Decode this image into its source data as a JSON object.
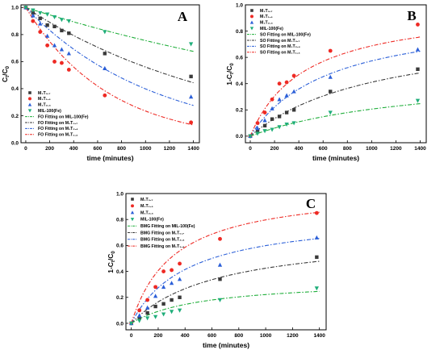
{
  "chart_data": [
    {
      "type": "scatter",
      "panel_label": "A",
      "xlabel": "time (minutes)",
      "ylabel_main": "C",
      "ylabel_sub1": "t",
      "ylabel_mid": "/C",
      "ylabel_sub2": "0",
      "xlim": [
        -40,
        1450
      ],
      "ylim": [
        0,
        1.02
      ],
      "xticks": [
        0,
        200,
        400,
        600,
        800,
        1000,
        1200,
        1400
      ],
      "yticks": [
        0.0,
        0.2,
        0.4,
        0.6,
        0.8,
        1.0
      ],
      "xtick_labels": [
        "0",
        "200",
        "400",
        "600",
        "800",
        "1000",
        "1200",
        "1400"
      ],
      "ytick_labels": [
        "0.0",
        "0.2",
        "0.4",
        "0.6",
        "0.8",
        "1.0"
      ],
      "legend_position": "bottom-left",
      "legend": [
        "M₁T₀.₇",
        "M₁T₁.₄",
        "M₁T₂.₄",
        "MIL-100(Fe)",
        "FO Fitting on MIL-100(Fe)",
        "FO Fitting on M₁T₀.₇",
        "FO Fitting on M₁T₂.₄",
        "FO Fitting on M₁T₁.₄"
      ],
      "x": [
        0,
        60,
        120,
        180,
        240,
        300,
        360,
        660,
        1380
      ],
      "series": [
        {
          "name": "M₁T₀.₇",
          "marker": "square",
          "color": "#3a3a3a",
          "values": [
            1.0,
            0.96,
            0.92,
            0.87,
            0.86,
            0.83,
            0.81,
            0.66,
            0.49
          ]
        },
        {
          "name": "M₁T₁.₄",
          "marker": "circle",
          "color": "#ee2a24",
          "values": [
            1.0,
            0.9,
            0.82,
            0.72,
            0.6,
            0.59,
            0.54,
            0.35,
            0.15
          ]
        },
        {
          "name": "M₁T₂.₄",
          "marker": "triangle-up",
          "color": "#2b5fd8",
          "values": [
            1.0,
            0.94,
            0.88,
            0.79,
            0.72,
            0.69,
            0.66,
            0.55,
            0.34
          ]
        },
        {
          "name": "MIL-100(Fe)",
          "marker": "triangle-down",
          "color": "#1fae7a",
          "values": [
            1.0,
            0.98,
            0.96,
            0.95,
            0.93,
            0.91,
            0.9,
            0.82,
            0.73
          ]
        }
      ],
      "fits": [
        {
          "name": "FO Fitting on MIL-100(Fe)",
          "color": "#1fae3a",
          "model": "FO",
          "k": 0.00028
        },
        {
          "name": "FO Fitting on M₁T₀.₇",
          "color": "#3a3a3a",
          "model": "FO",
          "k": 0.00058
        },
        {
          "name": "FO Fitting on M₁T₂.₄",
          "color": "#2b5fd8",
          "model": "FO",
          "k": 0.00092
        },
        {
          "name": "FO Fitting on M₁T₁.₄",
          "color": "#ee2a24",
          "model": "FO",
          "k": 0.00145
        }
      ]
    },
    {
      "type": "scatter",
      "panel_label": "B",
      "xlabel": "time (minutes)",
      "ylabel_main": "1-C",
      "ylabel_sub1": "t",
      "ylabel_mid": "/C",
      "ylabel_sub2": "0",
      "xlim": [
        -40,
        1450
      ],
      "ylim": [
        -0.05,
        1.0
      ],
      "xticks": [
        0,
        200,
        400,
        600,
        800,
        1000,
        1200,
        1400
      ],
      "yticks": [
        0.0,
        0.2,
        0.4,
        0.6,
        0.8,
        1.0
      ],
      "xtick_labels": [
        "0",
        "200",
        "400",
        "600",
        "800",
        "1000",
        "1200",
        "1400"
      ],
      "ytick_labels": [
        "0.0",
        "0.2",
        "0.4",
        "0.6",
        "0.8",
        "1.0"
      ],
      "legend_position": "top-left",
      "legend": [
        "M₁T₀.₇",
        "M₁T₁.₄",
        "M₁T₂.₄",
        "MIL-100(Fe)",
        "SO Fitting on MIL-100(Fe)",
        "SO Fitting on M₁T₀.₇",
        "SO Fitting on M₁T₂.₄",
        "SO Fitting on M₁T₁.₄"
      ],
      "x": [
        0,
        60,
        120,
        180,
        240,
        300,
        360,
        660,
        1380
      ],
      "series": [
        {
          "name": "M₁T₀.₇",
          "marker": "square",
          "color": "#3a3a3a",
          "values": [
            0.0,
            0.04,
            0.08,
            0.13,
            0.15,
            0.18,
            0.2,
            0.34,
            0.51
          ]
        },
        {
          "name": "M₁T₁.₄",
          "marker": "circle",
          "color": "#ee2a24",
          "values": [
            0.0,
            0.1,
            0.18,
            0.28,
            0.4,
            0.41,
            0.46,
            0.65,
            0.85
          ]
        },
        {
          "name": "M₁T₂.₄",
          "marker": "triangle-up",
          "color": "#2b5fd8",
          "values": [
            0.0,
            0.06,
            0.12,
            0.21,
            0.28,
            0.31,
            0.34,
            0.45,
            0.66
          ]
        },
        {
          "name": "MIL-100(Fe)",
          "marker": "triangle-down",
          "color": "#1fae7a",
          "values": [
            0.0,
            0.02,
            0.04,
            0.05,
            0.07,
            0.09,
            0.1,
            0.18,
            0.27
          ]
        }
      ],
      "fits": [
        {
          "name": "SO Fitting on MIL-100(Fe)",
          "color": "#1fae3a",
          "model": "SO",
          "qe": 0.5,
          "k": 0.0014
        },
        {
          "name": "SO Fitting on M₁T₀.₇",
          "color": "#3a3a3a",
          "model": "SO",
          "qe": 0.85,
          "k": 0.0011
        },
        {
          "name": "SO Fitting on M₁T₂.₄",
          "color": "#2b5fd8",
          "model": "SO",
          "qe": 0.95,
          "k": 0.0016
        },
        {
          "name": "SO Fitting on M₁T₁.₄",
          "color": "#ee2a24",
          "model": "SO",
          "qe": 1.0,
          "k": 0.0022
        }
      ]
    },
    {
      "type": "scatter",
      "panel_label": "C",
      "xlabel": "time (minutes)",
      "ylabel_main": "1-C",
      "ylabel_sub1": "t",
      "ylabel_mid": "/C",
      "ylabel_sub2": "0",
      "xlim": [
        -40,
        1450
      ],
      "ylim": [
        -0.05,
        1.0
      ],
      "xticks": [
        0,
        200,
        400,
        600,
        800,
        1000,
        1200,
        1400
      ],
      "yticks": [
        0.0,
        0.2,
        0.4,
        0.6,
        0.8,
        1.0
      ],
      "xtick_labels": [
        "0",
        "200",
        "400",
        "600",
        "800",
        "1000",
        "1200",
        "1400"
      ],
      "ytick_labels": [
        "0.0",
        "0.2",
        "0.4",
        "0.6",
        "0.8",
        "1.0"
      ],
      "legend_position": "top-left",
      "legend": [
        "M₁T₀.₇",
        "M₁T₁.₄",
        "M₁T₂.₄",
        "MIL-100(Fe)",
        "BMG Fitting on MIL-100(Fe)",
        "BMG Fitting on M₁T₀.₇",
        "BMG Fitting on M₁T₂.₄",
        "BMG Fitting on M₁T₁.₄"
      ],
      "x": [
        0,
        60,
        120,
        180,
        240,
        300,
        360,
        660,
        1380
      ],
      "series": [
        {
          "name": "M₁T₀.₇",
          "marker": "square",
          "color": "#3a3a3a",
          "values": [
            0.0,
            0.04,
            0.08,
            0.13,
            0.15,
            0.18,
            0.2,
            0.34,
            0.51
          ]
        },
        {
          "name": "M₁T₁.₄",
          "marker": "circle",
          "color": "#ee2a24",
          "values": [
            0.0,
            0.1,
            0.18,
            0.28,
            0.4,
            0.41,
            0.46,
            0.65,
            0.85
          ]
        },
        {
          "name": "M₁T₂.₄",
          "marker": "triangle-up",
          "color": "#2b5fd8",
          "values": [
            0.0,
            0.06,
            0.12,
            0.21,
            0.28,
            0.31,
            0.34,
            0.45,
            0.66
          ]
        },
        {
          "name": "MIL-100(Fe)",
          "marker": "triangle-down",
          "color": "#1fae7a",
          "values": [
            0.0,
            0.02,
            0.04,
            0.05,
            0.07,
            0.09,
            0.1,
            0.18,
            0.27
          ]
        }
      ],
      "fits": [
        {
          "name": "BMG Fitting on MIL-100(Fe)",
          "color": "#1fae3a",
          "model": "SO",
          "qe": 0.34,
          "k": 0.0055
        },
        {
          "name": "BMG Fitting on M₁T₀.₇",
          "color": "#3a3a3a",
          "model": "SO",
          "qe": 0.7,
          "k": 0.0022
        },
        {
          "name": "BMG Fitting on M₁T₂.₄",
          "color": "#2b5fd8",
          "model": "SO",
          "qe": 0.85,
          "k": 0.0028
        },
        {
          "name": "BMG Fitting on M₁T₁.₄",
          "color": "#ee2a24",
          "model": "SO",
          "qe": 1.05,
          "k": 0.003
        }
      ]
    }
  ]
}
